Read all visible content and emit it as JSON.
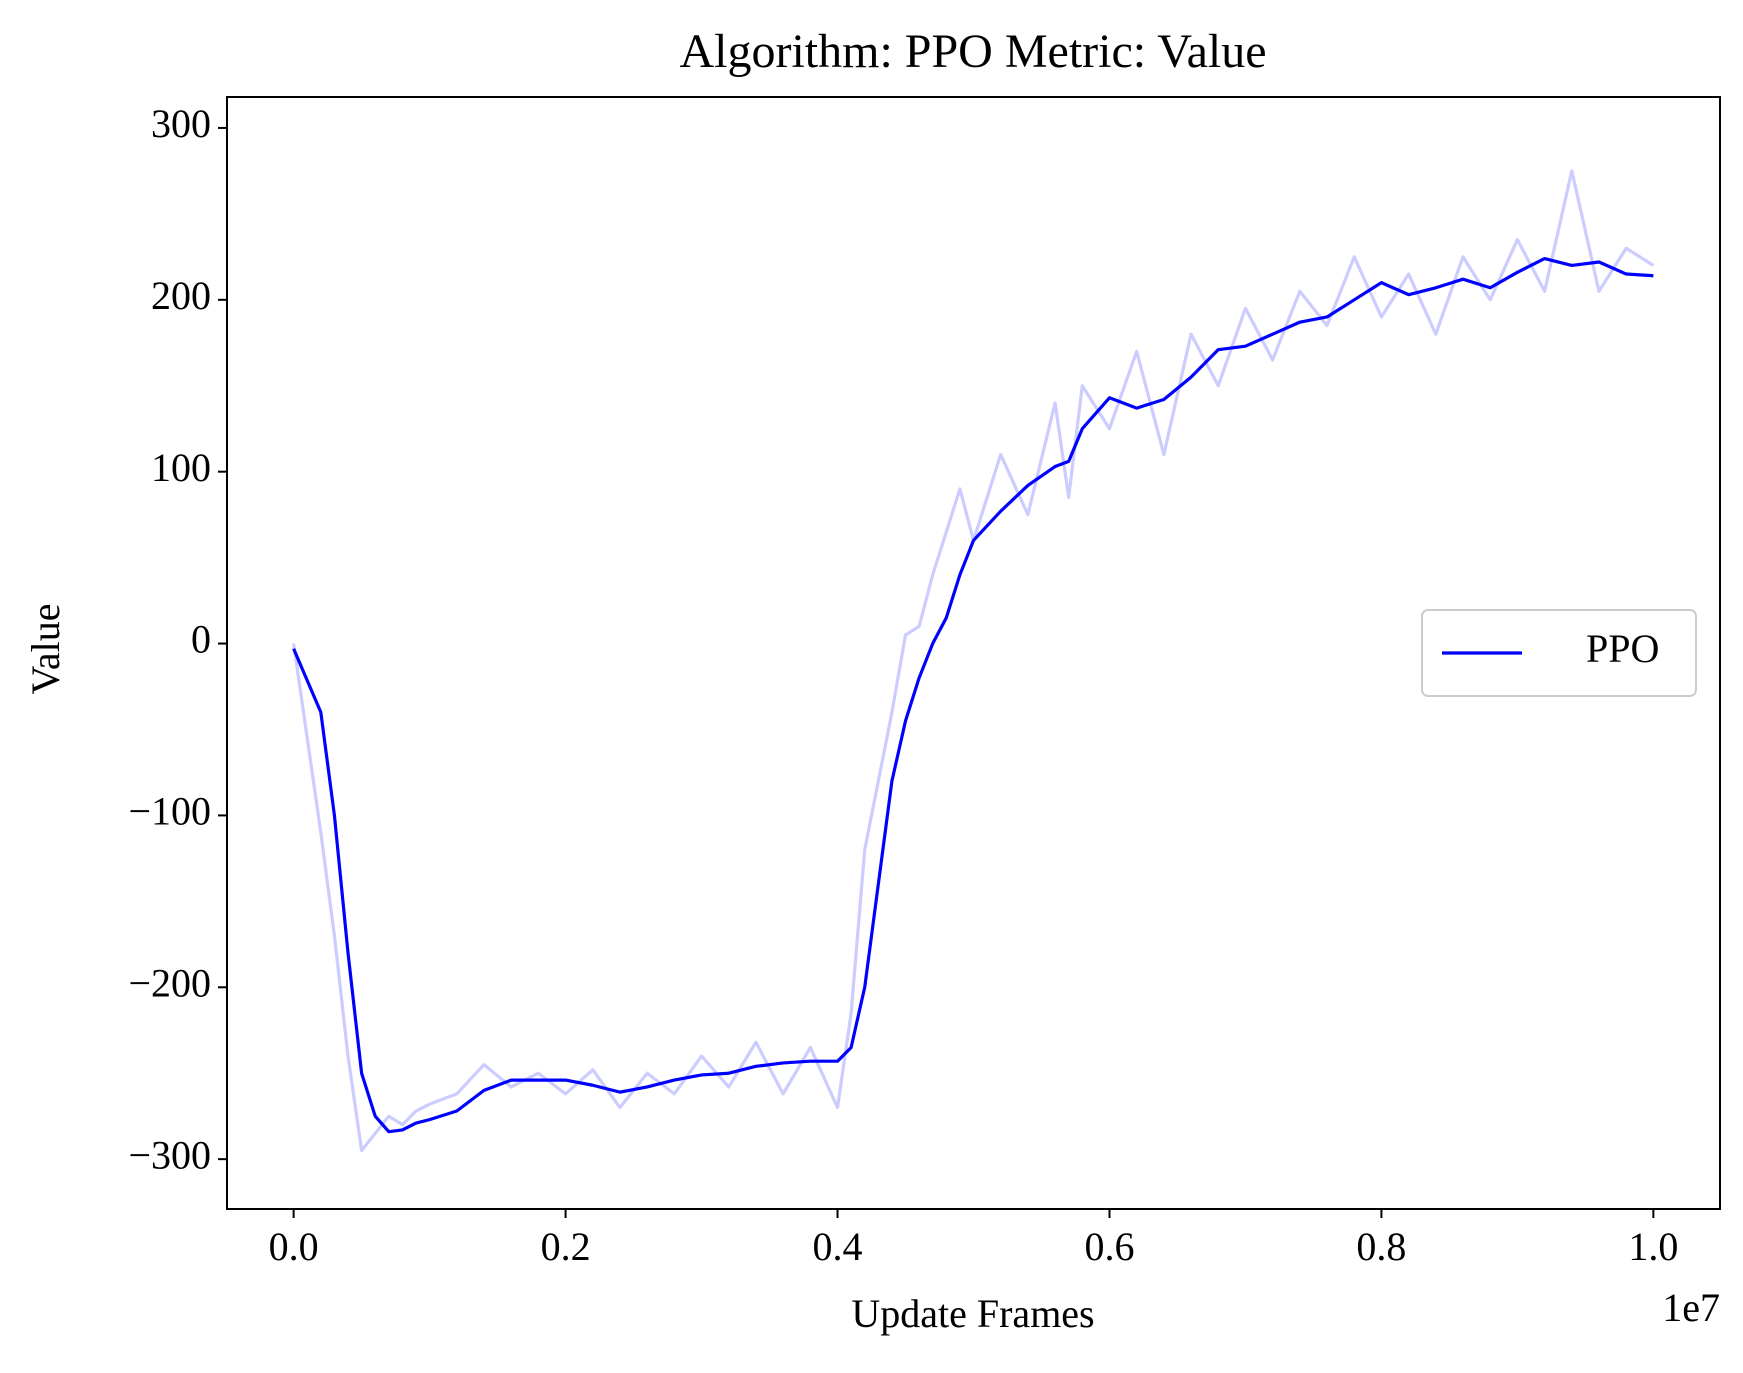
{
  "chart_data": {
    "type": "line",
    "title": "Algorithm: PPO Metric: Value",
    "x_label": "Update Frames",
    "y_label": "Value",
    "x_offset_label": "1e7",
    "x": [
      0,
      0.02,
      0.03,
      0.04,
      0.05,
      0.06,
      0.07,
      0.08,
      0.09,
      0.1,
      0.12,
      0.14,
      0.16,
      0.18,
      0.2,
      0.22,
      0.24,
      0.26,
      0.28,
      0.3,
      0.32,
      0.34,
      0.36,
      0.38,
      0.4,
      0.41,
      0.42,
      0.43,
      0.44,
      0.45,
      0.46,
      0.47,
      0.48,
      0.49,
      0.5,
      0.52,
      0.54,
      0.56,
      0.57,
      0.58,
      0.6,
      0.62,
      0.64,
      0.66,
      0.68,
      0.7,
      0.72,
      0.74,
      0.76,
      0.78,
      0.8,
      0.82,
      0.84,
      0.86,
      0.88,
      0.9,
      0.92,
      0.94,
      0.96,
      0.98,
      1.0
    ],
    "series": [
      {
        "color": "#ccccff",
        "values": [
          0,
          -110,
          -170,
          -240,
          -295,
          -285,
          -275,
          -280,
          -272,
          -268,
          -262,
          -245,
          -258,
          -250,
          -262,
          -248,
          -270,
          -250,
          -262,
          -240,
          -258,
          -232,
          -262,
          -235,
          -270,
          -215,
          -120,
          -80,
          -40,
          5,
          10,
          40,
          65,
          90,
          60,
          110,
          75,
          140,
          85,
          150,
          125,
          170,
          110,
          180,
          150,
          195,
          165,
          205,
          185,
          225,
          190,
          215,
          180,
          225,
          200,
          235,
          205,
          275,
          205,
          230,
          220
        ]
      },
      {
        "name": "PPO",
        "color": "#0000ff",
        "values": [
          -3,
          -40,
          -100,
          -180,
          -250,
          -275,
          -284,
          -283,
          -279,
          -277,
          -272,
          -260,
          -254,
          -254,
          -254,
          -257,
          -261,
          -258,
          -254,
          -251,
          -250,
          -246,
          -244,
          -243,
          -243,
          -235,
          -200,
          -140,
          -80,
          -45,
          -20,
          0,
          15,
          40,
          60,
          77,
          92,
          103,
          106,
          125,
          143,
          137,
          142,
          155,
          171,
          173,
          180,
          187,
          190,
          200,
          210,
          203,
          207,
          212,
          207,
          216,
          224,
          220,
          222,
          215,
          214
        ]
      }
    ],
    "xlim": [
      -0.049,
      1.049
    ],
    "ylim": [
      -329,
      318
    ],
    "xticks": [
      {
        "value": 0,
        "label": "0.0"
      },
      {
        "value": 0.2,
        "label": "0.2"
      },
      {
        "value": 0.4,
        "label": "0.4"
      },
      {
        "value": 0.6,
        "label": "0.6"
      },
      {
        "value": 0.8,
        "label": "0.8"
      },
      {
        "value": 1.0,
        "label": "1.0"
      }
    ],
    "yticks": [
      {
        "value": -300,
        "label": "−300"
      },
      {
        "value": -200,
        "label": "−200"
      },
      {
        "value": -100,
        "label": "−100"
      },
      0,
      100,
      200,
      300
    ],
    "legend": "center right",
    "grid": false
  }
}
